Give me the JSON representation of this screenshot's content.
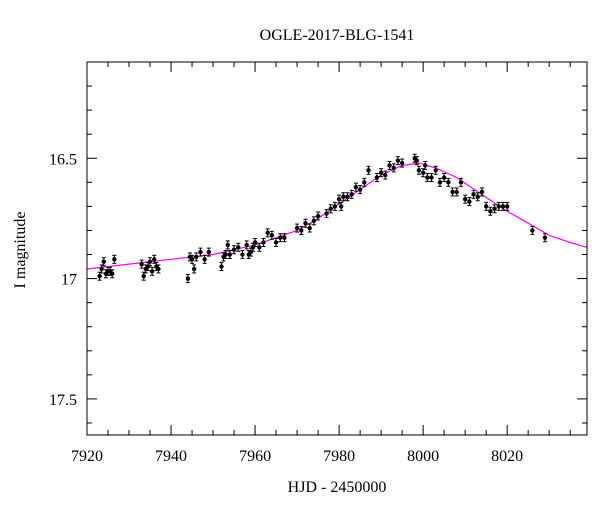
{
  "chart_data": {
    "type": "scatter",
    "title": "OGLE-2017-BLG-1541",
    "xlabel": "HJD - 2450000",
    "ylabel": "I magnitude",
    "xlim": [
      7920,
      8039
    ],
    "ylim": [
      17.65,
      16.1
    ],
    "y_inverted": true,
    "grid": false,
    "xticks": [
      7920,
      7940,
      7960,
      7980,
      8000,
      8020
    ],
    "yticks": [
      16.5,
      17,
      17.5
    ],
    "ytick_labels": [
      "16.5",
      "17",
      "17.5"
    ],
    "colors": {
      "points": "#000000",
      "model": "#ff00ff",
      "axes": "#000000"
    },
    "series": [
      {
        "kind": "observations",
        "x": [
          7923.0,
          7923.5,
          7924.0,
          7924.5,
          7925.0,
          7925.5,
          7926.0,
          7926.5,
          7933.0,
          7933.5,
          7934.0,
          7934.5,
          7935.0,
          7935.5,
          7936.0,
          7936.5,
          7937.0,
          7944.0,
          7944.5,
          7945.0,
          7945.5,
          7946.0,
          7947.0,
          7948.0,
          7949.0,
          7952.0,
          7952.5,
          7953.0,
          7953.5,
          7954.0,
          7955.0,
          7956.0,
          7957.0,
          7958.0,
          7958.5,
          7959.0,
          7959.5,
          7960.0,
          7961.0,
          7962.0,
          7963.0,
          7964.0,
          7965.0,
          7966.0,
          7967.0,
          7970.0,
          7971.0,
          7972.0,
          7973.0,
          7974.0,
          7975.0,
          7977.0,
          7978.0,
          7979.0,
          7980.0,
          7980.5,
          7981.0,
          7982.0,
          7983.0,
          7984.0,
          7985.0,
          7986.0,
          7987.0,
          7989.0,
          7990.0,
          7991.0,
          7992.0,
          7993.0,
          7994.0,
          7995.0,
          7998.0,
          7998.5,
          7999.0,
          8000.0,
          8000.5,
          8001.0,
          8002.0,
          8003.0,
          8004.0,
          8005.0,
          8006.0,
          8007.0,
          8008.0,
          8009.0,
          8010.0,
          8011.0,
          8012.0,
          8013.0,
          8014.0,
          8015.0,
          8016.0,
          8017.0,
          8018.0,
          8019.0,
          8020.0,
          8026.0,
          8029.0
        ],
        "y": [
          16.99,
          16.96,
          16.93,
          16.98,
          16.97,
          16.97,
          16.98,
          16.92,
          16.94,
          16.99,
          16.96,
          16.95,
          16.93,
          16.97,
          16.92,
          16.95,
          16.96,
          17.0,
          16.91,
          16.92,
          16.96,
          16.91,
          16.89,
          16.92,
          16.89,
          16.95,
          16.91,
          16.9,
          16.86,
          16.9,
          16.88,
          16.87,
          16.9,
          16.86,
          16.9,
          16.89,
          16.87,
          16.85,
          16.87,
          16.85,
          16.81,
          16.82,
          16.85,
          16.83,
          16.83,
          16.79,
          16.8,
          16.77,
          16.79,
          16.76,
          16.74,
          16.73,
          16.71,
          16.7,
          16.67,
          16.7,
          16.66,
          16.66,
          16.65,
          16.62,
          16.63,
          16.6,
          16.55,
          16.58,
          16.56,
          16.57,
          16.53,
          16.54,
          16.51,
          16.52,
          16.5,
          16.51,
          16.55,
          16.56,
          16.53,
          16.58,
          16.58,
          16.55,
          16.6,
          16.58,
          16.6,
          16.64,
          16.64,
          16.6,
          16.67,
          16.68,
          16.65,
          16.66,
          16.64,
          16.7,
          16.72,
          16.71,
          16.7,
          16.7,
          16.7,
          16.8,
          16.83
        ]
      },
      {
        "kind": "model",
        "x": [
          7920,
          7930,
          7940,
          7950,
          7960,
          7970,
          7975,
          7980,
          7985,
          7990,
          7995,
          7999,
          8003,
          8008,
          8013,
          8020,
          8025,
          8030,
          8035,
          8039
        ],
        "y": [
          16.96,
          16.94,
          16.92,
          16.9,
          16.86,
          16.8,
          16.75,
          16.69,
          16.63,
          16.57,
          16.53,
          16.52,
          16.54,
          16.58,
          16.64,
          16.72,
          16.77,
          16.82,
          16.85,
          16.87
        ]
      }
    ]
  }
}
